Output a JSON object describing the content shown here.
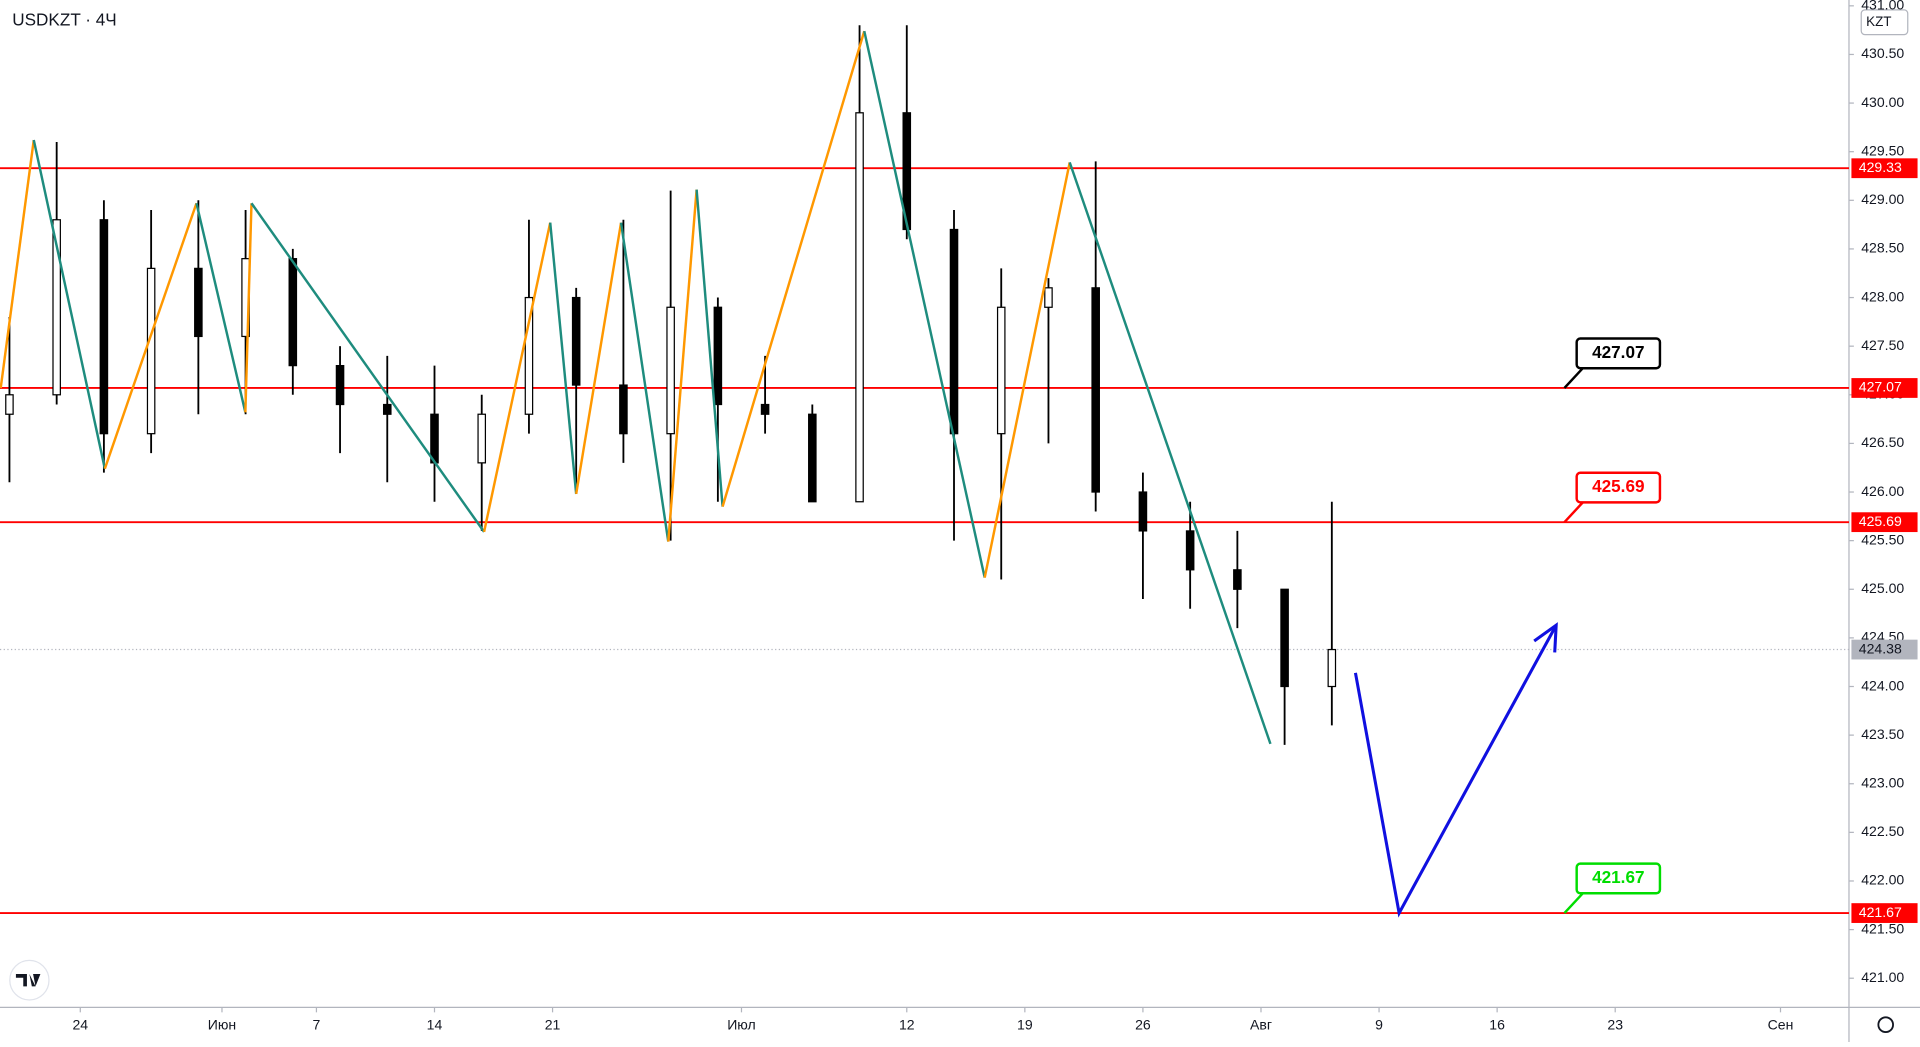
{
  "chart_data": {
    "type": "candlestick",
    "title": "USDKZT · 4Ч",
    "currency": "KZT",
    "xlim": [
      -3.4,
      74.9
    ],
    "ylim": [
      420.7,
      431.06
    ],
    "xticks": [
      {
        "value": 0,
        "label": "24"
      },
      {
        "value": 6,
        "label": "Июн"
      },
      {
        "value": 10,
        "label": "7"
      },
      {
        "value": 15,
        "label": "14"
      },
      {
        "value": 20,
        "label": "21"
      },
      {
        "value": 28,
        "label": "Июл"
      },
      {
        "value": 35,
        "label": "12"
      },
      {
        "value": 40,
        "label": "19"
      },
      {
        "value": 45,
        "label": "26"
      },
      {
        "value": 50,
        "label": "Авг"
      },
      {
        "value": 55,
        "label": "9"
      },
      {
        "value": 60,
        "label": "16"
      },
      {
        "value": 65,
        "label": "23"
      },
      {
        "value": 72,
        "label": "Сен"
      }
    ],
    "yticks": [
      {
        "value": 421,
        "label": "421.00"
      },
      {
        "value": 421.5,
        "label": "421.50"
      },
      {
        "value": 422,
        "label": "422.00"
      },
      {
        "value": 422.5,
        "label": "422.50"
      },
      {
        "value": 423,
        "label": "423.00"
      },
      {
        "value": 423.5,
        "label": "423.50"
      },
      {
        "value": 424,
        "label": "424.00"
      },
      {
        "value": 424.5,
        "label": "424.50"
      },
      {
        "value": 425,
        "label": "425.00"
      },
      {
        "value": 425.5,
        "label": "425.50"
      },
      {
        "value": 426,
        "label": "426.00"
      },
      {
        "value": 426.5,
        "label": "426.50"
      },
      {
        "value": 427,
        "label": "427.00"
      },
      {
        "value": 427.5,
        "label": "427.50"
      },
      {
        "value": 428,
        "label": "428.00"
      },
      {
        "value": 428.5,
        "label": "428.50"
      },
      {
        "value": 429,
        "label": "429.00"
      },
      {
        "value": 429.5,
        "label": "429.50"
      },
      {
        "value": 430,
        "label": "430.00"
      },
      {
        "value": 430.5,
        "label": "430.50"
      },
      {
        "value": 431,
        "label": "431.00"
      }
    ],
    "ohlc": {
      "x": [
        -3,
        -1,
        1,
        3,
        5,
        7,
        9,
        11,
        13,
        15,
        17,
        19,
        21,
        23,
        25,
        27,
        29,
        31,
        33,
        35,
        37,
        39,
        41,
        43,
        45,
        47,
        49,
        51,
        53
      ],
      "open": [
        426.8,
        427.0,
        428.8,
        426.6,
        428.3,
        427.6,
        428.4,
        427.3,
        426.9,
        426.8,
        426.3,
        426.8,
        428.0,
        427.1,
        426.6,
        427.9,
        426.9,
        426.8,
        425.9,
        429.9,
        428.7,
        426.6,
        427.9,
        428.1,
        426.0,
        425.6,
        425.2,
        425.0,
        424.0
      ],
      "high": [
        427.8,
        429.6,
        429.0,
        428.9,
        429.0,
        428.9,
        428.5,
        427.5,
        427.4,
        427.3,
        427.0,
        428.8,
        428.1,
        428.8,
        429.1,
        428.0,
        427.4,
        426.9,
        430.8,
        430.8,
        428.9,
        428.3,
        428.2,
        429.4,
        426.2,
        425.9,
        425.6,
        425.0,
        425.9
      ],
      "low": [
        426.1,
        426.9,
        426.2,
        426.4,
        426.8,
        426.8,
        427.0,
        426.4,
        426.1,
        425.9,
        425.6,
        426.6,
        426.0,
        426.3,
        425.5,
        425.9,
        426.6,
        425.9,
        425.9,
        428.6,
        425.5,
        425.1,
        426.5,
        425.8,
        424.9,
        424.8,
        424.6,
        423.4,
        423.6
      ],
      "close": [
        427.0,
        428.8,
        426.6,
        428.3,
        427.6,
        428.4,
        427.3,
        426.9,
        426.8,
        426.3,
        426.8,
        428.0,
        427.1,
        426.6,
        427.9,
        426.9,
        426.8,
        425.9,
        429.9,
        428.7,
        426.6,
        427.9,
        428.1,
        426.0,
        425.6,
        425.2,
        425.0,
        424.0,
        424.38
      ],
      "up_color": "#ffffff",
      "down_color": "#000000"
    },
    "zigzag": {
      "x": [
        -3.37,
        -1.97,
        1.04,
        4.92,
        6.99,
        7.25,
        17.1,
        19.9,
        21.0,
        22.9,
        24.9,
        26.1,
        27.2,
        33.2,
        38.3,
        41.9,
        50.4
      ],
      "values": [
        427.07,
        429.62,
        426.24,
        428.97,
        426.82,
        428.97,
        425.59,
        428.77,
        425.98,
        428.77,
        425.49,
        429.11,
        425.85,
        430.74,
        425.12,
        429.39,
        423.41
      ],
      "up_color": "#ff9800",
      "down_color": "#1e8c7e"
    },
    "forecast": {
      "x": [
        54.0,
        55.85,
        62.5
      ],
      "values": [
        424.14,
        421.67,
        424.63
      ],
      "color": "#1010e0"
    },
    "levels": [
      {
        "value": 429.33,
        "label": "429.33"
      },
      {
        "value": 427.07,
        "label": "427.07"
      },
      {
        "value": 425.69,
        "label": "425.69"
      },
      {
        "value": 421.67,
        "label": "421.67"
      }
    ],
    "level_color": "#ff0000",
    "callouts": [
      {
        "value": 427.07,
        "label": "427.07",
        "color": "#000000"
      },
      {
        "value": 425.69,
        "label": "425.69",
        "color": "#ff0000"
      },
      {
        "value": 421.67,
        "label": "421.67",
        "color": "#00dd00"
      }
    ],
    "callout_x": 62.85,
    "last_price": {
      "value": 424.38,
      "label": "424.38"
    }
  }
}
